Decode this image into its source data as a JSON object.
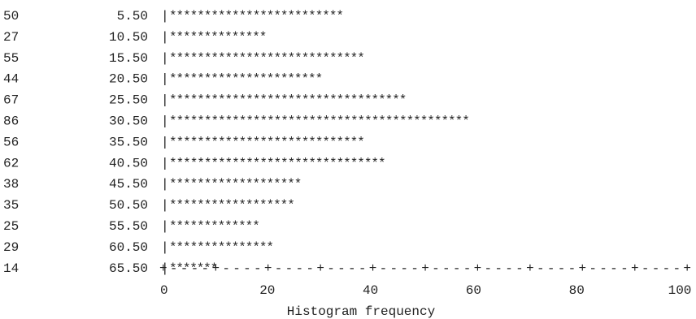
{
  "chart_data": {
    "type": "bar",
    "orientation": "horizontal",
    "render_style": "ascii-text",
    "bar_char": "*",
    "categories": [
      "5.50",
      "10.50",
      "15.50",
      "20.50",
      "25.50",
      "30.50",
      "35.50",
      "40.50",
      "45.50",
      "50.50",
      "55.50",
      "60.50",
      "65.50"
    ],
    "frequency_labels": [
      "50",
      "27",
      "55",
      "44",
      "67",
      "86",
      "56",
      "62",
      "38",
      "35",
      "25",
      "29",
      "14"
    ],
    "values": [
      50,
      27,
      55,
      44,
      67,
      86,
      56,
      62,
      38,
      35,
      25,
      29,
      14
    ],
    "xlim": [
      0,
      100
    ],
    "xticks": [
      0,
      20,
      40,
      60,
      80,
      100
    ],
    "xtick_labels": [
      "0",
      "20",
      "40",
      "60",
      "80",
      "100"
    ],
    "axis_line": "+----+----+----+----+----+----+----+----+----+----+",
    "axis_separator": "|",
    "xlabel": "Histogram frequency",
    "ylabel": "",
    "title": "",
    "grid": false,
    "colors": {
      "text": "#222222",
      "background": "#ffffff"
    }
  }
}
